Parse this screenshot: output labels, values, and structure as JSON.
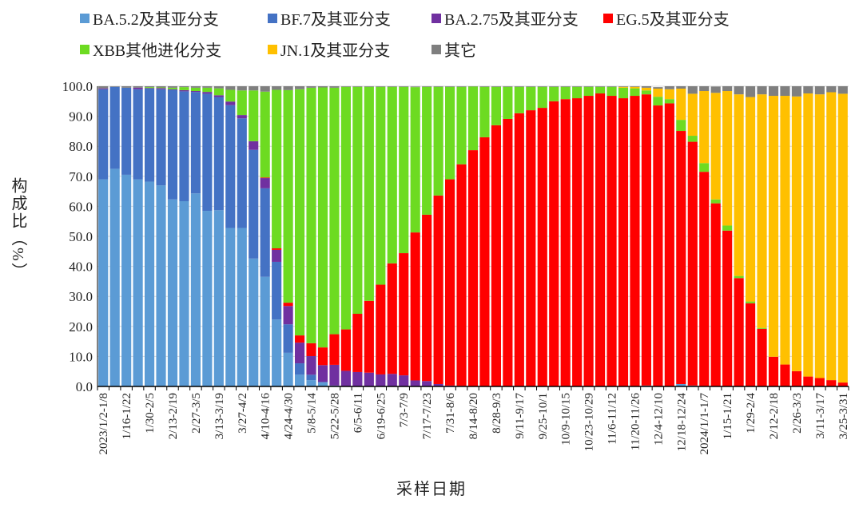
{
  "chart_data": {
    "type": "bar",
    "stacked": true,
    "xlabel": "采样日期",
    "ylabel": "构成比（%）",
    "ylim": [
      0,
      100
    ],
    "yticks": [
      "0.0",
      "10.0",
      "20.0",
      "30.0",
      "40.0",
      "50.0",
      "60.0",
      "70.0",
      "80.0",
      "90.0",
      "100.0"
    ],
    "grid": true,
    "legend_position": "top",
    "category_labels_shown": [
      "2023/1/2-1/8",
      "1/16-1/22",
      "1/30-2/5",
      "2/13-2/19",
      "2/27-3/5",
      "3/13-3/19",
      "3/27-4/2",
      "4/10-4/16",
      "4/24-4/30",
      "5/8-5/14",
      "5/22-5/28",
      "6/5-6/11",
      "6/19-6/25",
      "7/3-7/9",
      "7/17-7/23",
      "7/31-8/6",
      "8/14-8/20",
      "8/28-9/3",
      "9/11-9/17",
      "9/25-10/1",
      "10/9-10/15",
      "10/23-10/29",
      "11/6-11/12",
      "11/20-11/26",
      "12/4-12/10",
      "12/18-12/24",
      "2024/1/1-1/7",
      "1/15-1/21",
      "1/29-2/4",
      "2/12-2/18",
      "2/26-3/3",
      "3/11-3/17",
      "3/25-3/31"
    ],
    "series": [
      {
        "name": "BA.5.2及其亚分支",
        "color": "#5b9bd5",
        "values": [
          69,
          72.5,
          70.5,
          69,
          68.2,
          67,
          62.3,
          61.7,
          64.3,
          58.5,
          58.7,
          52.8,
          52.8,
          42.6,
          36.5,
          22.3,
          11.2,
          3.9,
          2.1,
          1.3,
          0.3,
          0,
          0,
          0,
          0,
          0,
          0,
          0,
          0,
          0,
          0,
          0,
          0,
          0,
          0,
          0,
          0,
          0,
          0,
          0,
          0,
          0,
          0,
          0,
          0,
          0,
          0,
          0.3,
          0,
          0,
          0.8,
          0.3,
          0,
          0,
          0,
          0,
          0,
          0,
          0,
          0,
          0,
          0,
          0,
          0,
          0
        ]
      },
      {
        "name": "BF.7及其亚分支",
        "color": "#4472c4",
        "values": [
          30,
          27.3,
          29,
          30,
          31,
          32,
          36.5,
          36.6,
          33.8,
          39,
          37.7,
          40.9,
          36.5,
          36.2,
          29.5,
          19.2,
          9.5,
          3.8,
          1.8,
          0.2,
          0,
          0,
          0,
          0,
          0,
          0,
          0,
          0,
          0,
          0,
          0,
          0,
          0,
          0,
          0,
          0,
          0,
          0,
          0,
          0,
          0,
          0,
          0,
          0,
          0,
          0,
          0,
          0,
          0,
          0,
          0,
          0,
          0,
          0,
          0,
          0,
          0,
          0,
          0,
          0,
          0,
          0,
          0,
          0,
          0
        ]
      },
      {
        "name": "BA.2.75及其亚分支",
        "color": "#7030a0",
        "values": [
          0.3,
          0,
          0,
          0.5,
          0.2,
          0.4,
          0.2,
          0.4,
          0.3,
          0.6,
          0.6,
          1.2,
          1.1,
          2.9,
          3.4,
          4,
          6.1,
          6.9,
          6.2,
          5.6,
          6.9,
          5.2,
          4.8,
          4.6,
          4,
          4.2,
          3.7,
          2,
          1.8,
          0.8,
          0.3,
          0.2,
          0.1,
          0,
          0,
          0,
          0,
          0,
          0,
          0,
          0,
          0,
          0,
          0,
          0,
          0,
          0,
          0,
          0,
          0,
          0,
          0,
          0,
          0,
          0,
          0,
          0,
          0,
          0,
          0,
          0,
          0,
          0,
          0,
          0
        ]
      },
      {
        "name": "EG.5及其亚分支",
        "color": "#ff0000",
        "values": [
          0,
          0,
          0,
          0,
          0,
          0,
          0,
          0,
          0,
          0,
          0,
          0,
          0,
          0,
          0.2,
          0.5,
          1.1,
          2.4,
          4.3,
          5.9,
          10.2,
          13.8,
          19.4,
          23.9,
          29.9,
          36.8,
          40.7,
          49.3,
          55.4,
          62.8,
          68.7,
          73.8,
          78.6,
          83,
          87,
          89.1,
          91,
          92,
          92.8,
          95,
          95.7,
          96,
          96.8,
          97.6,
          96.8,
          96,
          96.8,
          97,
          93.6,
          94.3,
          84.3,
          81.2,
          71.5,
          61,
          51.9,
          36.1,
          27.7,
          19.2,
          9.9,
          7.3,
          5.1,
          3.3,
          2.8,
          2.1,
          1.3
        ]
      },
      {
        "name": "XBB其他进化分支",
        "color": "#6ddb21",
        "values": [
          0,
          0,
          0,
          0,
          0.3,
          0.2,
          0.5,
          1,
          1.1,
          1.4,
          2.3,
          3.9,
          8.2,
          16.9,
          28.6,
          52.8,
          70.8,
          82,
          85.1,
          86.6,
          82.1,
          80.8,
          75.6,
          71.3,
          65.9,
          58.8,
          55.4,
          48.4,
          42.6,
          36.2,
          30.8,
          25.8,
          21.2,
          16.8,
          12.8,
          10.7,
          8.8,
          7.8,
          7,
          4.8,
          4.1,
          3.8,
          3,
          2.2,
          3,
          3.5,
          2.5,
          1.3,
          2.9,
          1.4,
          3.7,
          2,
          2.9,
          1.3,
          1.7,
          0.7,
          0.6,
          0.3,
          0,
          0,
          0,
          0,
          0,
          0,
          0
        ]
      },
      {
        "name": "JN.1及其亚分支",
        "color": "#ffc000",
        "values": [
          0,
          0,
          0,
          0,
          0,
          0,
          0,
          0,
          0,
          0,
          0,
          0,
          0,
          0,
          0,
          0,
          0,
          0,
          0,
          0,
          0,
          0,
          0,
          0,
          0,
          0,
          0,
          0,
          0,
          0,
          0,
          0,
          0,
          0,
          0,
          0,
          0,
          0,
          0,
          0,
          0,
          0,
          0,
          0,
          0,
          0.3,
          0.5,
          0.9,
          2.7,
          3.3,
          10.4,
          14,
          24,
          35.5,
          44.8,
          60.5,
          68.1,
          77.8,
          86.9,
          89.5,
          91.5,
          94.3,
          94.5,
          95.9,
          96.2
        ]
      },
      {
        "name": "其它",
        "color": "#7f7f7f",
        "values": [
          0.7,
          0.2,
          0.5,
          0.5,
          0.3,
          0.4,
          0.5,
          0.3,
          0.5,
          0.5,
          0.7,
          1.2,
          1.4,
          1.4,
          1.8,
          1.2,
          1.3,
          1,
          0.5,
          0.6,
          0.5,
          0.2,
          0.2,
          0.2,
          0.2,
          0.2,
          0.2,
          0.2,
          0.2,
          0.2,
          0.2,
          0.2,
          0.2,
          0.2,
          0.2,
          0.2,
          0.2,
          0.2,
          0.2,
          0.2,
          0.2,
          0.2,
          0.2,
          0.2,
          0.2,
          0.2,
          0.2,
          0.5,
          0.5,
          1,
          0.8,
          2.5,
          1.6,
          2.1,
          1.6,
          2.7,
          3.6,
          2.7,
          3.2,
          3.2,
          3.4,
          2.4,
          2.7,
          2,
          2.5
        ]
      }
    ]
  }
}
